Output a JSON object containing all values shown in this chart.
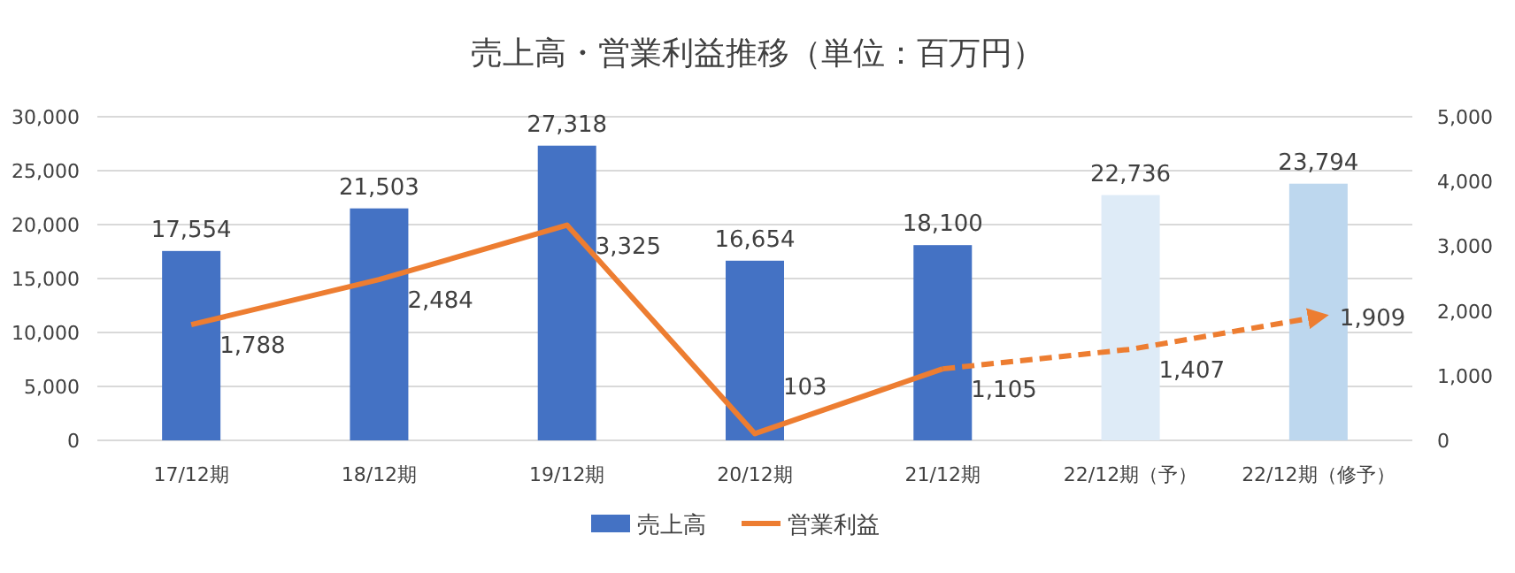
{
  "chart_data": {
    "type": "bar",
    "title": "売上高・営業利益推移（単位：百万円）",
    "categories": [
      "17/12期",
      "18/12期",
      "19/12期",
      "20/12期",
      "21/12期",
      "22/12期（予）",
      "22/12期（修予）"
    ],
    "series": [
      {
        "name": "売上高",
        "color": "#4472c4",
        "colors": [
          "#4472c4",
          "#4472c4",
          "#4472c4",
          "#4472c4",
          "#4472c4",
          "#deebf7",
          "#bdd7ee"
        ],
        "values": [
          17554,
          21503,
          27318,
          16654,
          18100,
          22736,
          23794
        ],
        "value_labels": [
          "17,554",
          "21,503",
          "27,318",
          "16,654",
          "18,100",
          "22,736",
          "23,794"
        ]
      },
      {
        "name": "営業利益",
        "type": "line",
        "axis": "y2",
        "color": "#ed7d31",
        "line_style": "solid",
        "values": [
          1788,
          2484,
          3325,
          103,
          1105,
          null,
          null
        ],
        "value_labels": [
          "1,788",
          "2,484",
          "3,325",
          "103",
          "1,105",
          null,
          null
        ]
      },
      {
        "type": "line",
        "axis": "y2",
        "color": "#ed7d31",
        "line_style": "dashed",
        "values": [
          null,
          null,
          null,
          null,
          1105,
          1407,
          1909
        ],
        "value_labels": [
          null,
          null,
          null,
          null,
          null,
          "1,407",
          "1,909"
        ]
      }
    ],
    "ylim": [
      0,
      30000
    ],
    "yticks": [
      {
        "value": 0,
        "label": "0"
      },
      {
        "value": 5000,
        "label": "5,000"
      },
      {
        "value": 10000,
        "label": "10,000"
      },
      {
        "value": 15000,
        "label": "15,000"
      },
      {
        "value": 20000,
        "label": "20,000"
      },
      {
        "value": 25000,
        "label": "25,000"
      },
      {
        "value": 30000,
        "label": "30,000"
      }
    ],
    "y2lim": [
      0,
      5000
    ],
    "y2ticks": [
      {
        "value": 0,
        "label": "0"
      },
      {
        "value": 1000,
        "label": "1,000"
      },
      {
        "value": 2000,
        "label": "2,000"
      },
      {
        "value": 3000,
        "label": "3,000"
      },
      {
        "value": 4000,
        "label": "4,000"
      },
      {
        "value": 5000,
        "label": "5,000"
      }
    ],
    "grid": "y",
    "legend": "bottom"
  }
}
